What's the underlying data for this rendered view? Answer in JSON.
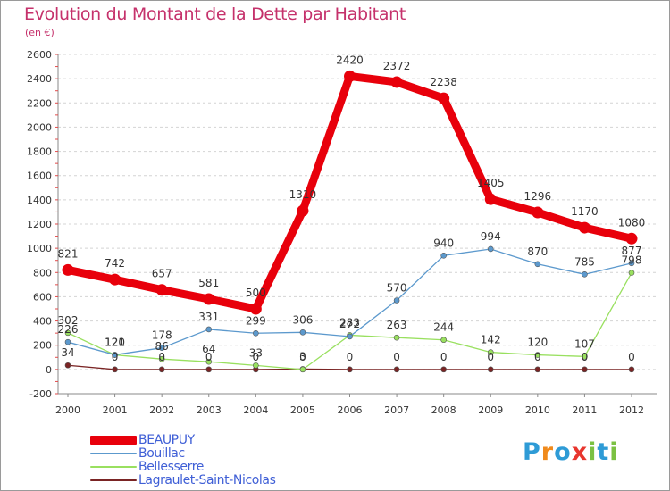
{
  "header": {
    "title": "Evolution du Montant de la Dette par Habitant",
    "unit": "(en €)"
  },
  "chart_data": {
    "type": "line",
    "title": "Evolution du Montant de la Dette par Habitant",
    "subtitle": "(en €)",
    "xlabel": "",
    "ylabel": "",
    "x": [
      "2000",
      "2001",
      "2002",
      "2003",
      "2004",
      "2005",
      "2006",
      "2007",
      "2008",
      "2009",
      "2010",
      "2011",
      "2012"
    ],
    "ylim": [
      -200,
      2600
    ],
    "yticks": [
      -200,
      0,
      200,
      400,
      600,
      800,
      1000,
      1200,
      1400,
      1600,
      1800,
      2000,
      2200,
      2400,
      2600
    ],
    "grid": "horizontal dashed",
    "legend_position": "bottom-left",
    "series": [
      {
        "name": "BEAUPUY",
        "color": "#e8000b",
        "values": [
          821,
          742,
          657,
          581,
          500,
          1310,
          2420,
          2372,
          2238,
          1405,
          1296,
          1170,
          1080
        ]
      },
      {
        "name": "Bouillac",
        "color": "#5c99cd",
        "values": [
          226,
          121,
          178,
          331,
          299,
          306,
          272,
          570,
          940,
          994,
          870,
          785,
          877
        ]
      },
      {
        "name": "Bellesserre",
        "color": "#99e05f",
        "values": [
          302,
          120,
          86,
          64,
          33,
          0,
          283,
          263,
          244,
          142,
          120,
          107,
          798
        ]
      },
      {
        "name": "Lagraulet-Saint-Nicolas",
        "color": "#7a2424",
        "values": [
          34,
          0,
          0,
          0,
          0,
          3,
          0,
          0,
          0,
          0,
          0,
          0,
          0
        ]
      }
    ]
  },
  "logo": {
    "letters": [
      "P",
      "r",
      "o",
      "x",
      "i",
      "t",
      "i"
    ],
    "colors": [
      "#2e9bd6",
      "#f08a1c",
      "#2e9bd6",
      "#e8362e",
      "#7bc142",
      "#2e9bd6",
      "#7bc142"
    ]
  }
}
